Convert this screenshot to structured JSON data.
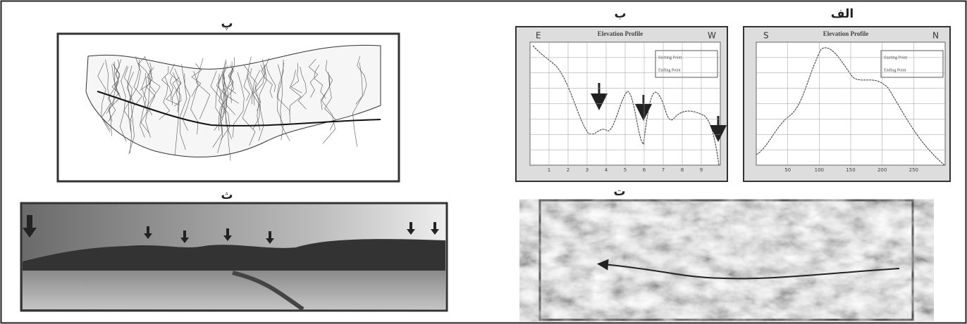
{
  "panels": {
    "alef": {
      "label": "الف",
      "title": "Elevation Profile",
      "left": "S",
      "right": "N",
      "xticks": [
        "50",
        "100",
        "150",
        "200",
        "250"
      ],
      "legend": [
        "Starting Point",
        "Ending Point"
      ]
    },
    "be": {
      "label": "ب",
      "title": "Elevation Profile",
      "left": "E",
      "right": "W",
      "xticks": [
        "1",
        "2",
        "3",
        "4",
        "5",
        "6",
        "7",
        "8",
        "9"
      ],
      "legend": [
        "Starting Point",
        "Ending Point"
      ]
    },
    "pe": {
      "label": "پ"
    },
    "te": {
      "label": "ت"
    },
    "se": {
      "label": "ث"
    }
  }
}
